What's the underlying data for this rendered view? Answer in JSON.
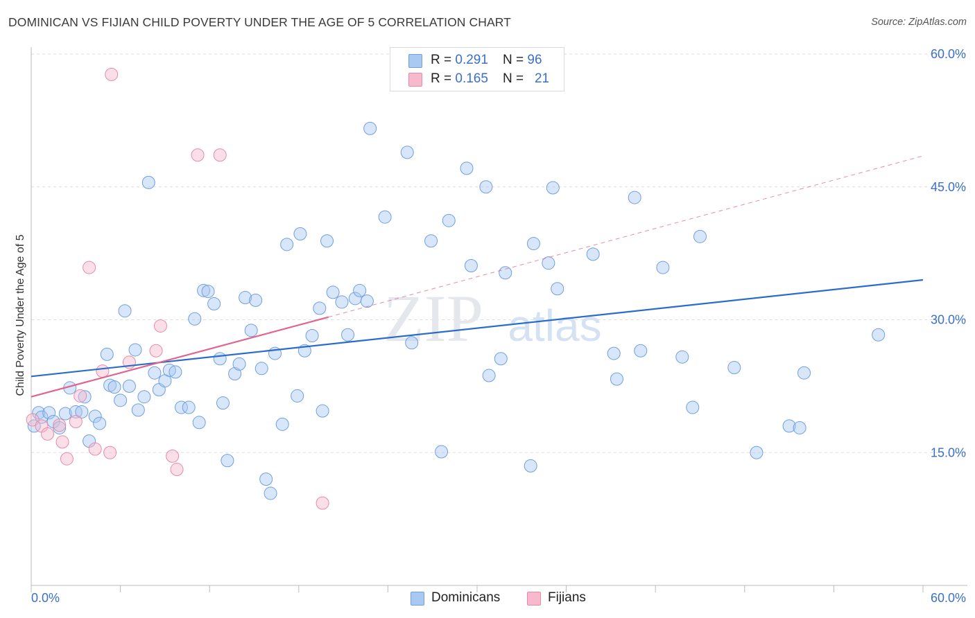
{
  "title": "DOMINICAN VS FIJIAN CHILD POVERTY UNDER THE AGE OF 5 CORRELATION CHART",
  "source": "Source: ZipAtlas.com",
  "watermark": {
    "zip": "ZIP",
    "atlas": "atlas"
  },
  "legend": {
    "rows": [
      {
        "r_label": "R = ",
        "r_value": "0.291",
        "n_label": "N = ",
        "n_value": "96",
        "color": "#a9c8f2"
      },
      {
        "r_label": "R = ",
        "r_value": "0.165",
        "n_label": "N = ",
        "n_value": "21",
        "color": "#f7b9cb"
      }
    ]
  },
  "bottom_legend": [
    "Dominicans",
    "Fijians"
  ],
  "colors": {
    "blue_fill": "#a9c8f2",
    "blue_stroke": "#6f9fdf",
    "blue_line": "#2a6cc9",
    "pink_fill": "#f7b9cb",
    "pink_stroke": "#e88aa7",
    "pink_line": "#e0648f",
    "grid": "#dddddd",
    "axis": "#bbbbbb",
    "tick_text": "#3a6fcc"
  },
  "chart_data": {
    "type": "scatter",
    "title": "DOMINICAN VS FIJIAN CHILD POVERTY UNDER THE AGE OF 5 CORRELATION CHART",
    "xlabel": "",
    "ylabel": "Child Poverty Under the Age of 5",
    "xlim": [
      0,
      60
    ],
    "ylim": [
      0,
      60
    ],
    "x_tick_labels": [
      "0.0%",
      "60.0%"
    ],
    "y_ticks": [
      15,
      30,
      45,
      60
    ],
    "y_tick_labels": [
      "15.0%",
      "30.0%",
      "45.0%",
      "60.0%"
    ],
    "grid": true,
    "legend_position": "top-center",
    "series": [
      {
        "name": "Dominicans",
        "R": 0.291,
        "N": 96,
        "points": [
          [
            0.2,
            18.0
          ],
          [
            0.5,
            19.5
          ],
          [
            0.7,
            19.0
          ],
          [
            1.2,
            19.5
          ],
          [
            1.5,
            18.5
          ],
          [
            1.9,
            17.8
          ],
          [
            2.3,
            19.4
          ],
          [
            2.6,
            22.3
          ],
          [
            3.0,
            19.6
          ],
          [
            3.4,
            19.6
          ],
          [
            3.6,
            21.3
          ],
          [
            3.9,
            16.3
          ],
          [
            4.3,
            19.1
          ],
          [
            4.6,
            18.3
          ],
          [
            5.1,
            26.1
          ],
          [
            5.3,
            22.6
          ],
          [
            5.6,
            22.4
          ],
          [
            6.0,
            20.9
          ],
          [
            6.3,
            31.0
          ],
          [
            6.6,
            22.5
          ],
          [
            7.0,
            26.6
          ],
          [
            7.2,
            19.8
          ],
          [
            7.6,
            21.3
          ],
          [
            7.9,
            45.5
          ],
          [
            8.3,
            24.0
          ],
          [
            8.6,
            22.1
          ],
          [
            9.0,
            23.1
          ],
          [
            9.3,
            24.3
          ],
          [
            9.7,
            24.1
          ],
          [
            10.1,
            20.1
          ],
          [
            10.6,
            20.1
          ],
          [
            11.0,
            30.1
          ],
          [
            11.3,
            18.4
          ],
          [
            11.6,
            33.3
          ],
          [
            11.9,
            33.2
          ],
          [
            12.3,
            31.8
          ],
          [
            12.7,
            25.6
          ],
          [
            12.9,
            20.6
          ],
          [
            13.2,
            14.1
          ],
          [
            13.7,
            23.9
          ],
          [
            14.0,
            25.0
          ],
          [
            14.4,
            32.5
          ],
          [
            14.8,
            28.8
          ],
          [
            15.1,
            32.2
          ],
          [
            15.5,
            24.5
          ],
          [
            15.8,
            12.0
          ],
          [
            16.1,
            10.4
          ],
          [
            16.4,
            26.2
          ],
          [
            16.9,
            18.2
          ],
          [
            17.2,
            38.5
          ],
          [
            17.9,
            21.4
          ],
          [
            18.1,
            39.7
          ],
          [
            18.4,
            26.5
          ],
          [
            18.9,
            28.2
          ],
          [
            19.4,
            31.3
          ],
          [
            19.6,
            19.7
          ],
          [
            19.9,
            38.9
          ],
          [
            20.3,
            33.1
          ],
          [
            20.9,
            32.0
          ],
          [
            21.3,
            28.3
          ],
          [
            21.8,
            32.4
          ],
          [
            22.1,
            33.3
          ],
          [
            22.6,
            32.1
          ],
          [
            22.8,
            51.6
          ],
          [
            23.8,
            41.6
          ],
          [
            25.3,
            48.9
          ],
          [
            25.6,
            27.4
          ],
          [
            26.9,
            38.9
          ],
          [
            27.6,
            15.1
          ],
          [
            28.1,
            41.2
          ],
          [
            29.3,
            47.1
          ],
          [
            29.6,
            36.1
          ],
          [
            30.6,
            45.0
          ],
          [
            30.8,
            23.7
          ],
          [
            31.6,
            25.6
          ],
          [
            31.9,
            35.3
          ],
          [
            33.6,
            13.5
          ],
          [
            33.8,
            38.6
          ],
          [
            34.8,
            36.4
          ],
          [
            35.1,
            44.9
          ],
          [
            35.4,
            33.5
          ],
          [
            37.8,
            37.4
          ],
          [
            39.2,
            26.2
          ],
          [
            39.4,
            23.3
          ],
          [
            40.6,
            43.8
          ],
          [
            41.0,
            26.5
          ],
          [
            42.5,
            35.9
          ],
          [
            43.8,
            25.8
          ],
          [
            44.5,
            20.1
          ],
          [
            45.0,
            39.4
          ],
          [
            47.3,
            24.6
          ],
          [
            48.8,
            15.0
          ],
          [
            51.0,
            18.0
          ],
          [
            51.7,
            17.8
          ],
          [
            52.0,
            24.0
          ],
          [
            57.0,
            28.3
          ]
        ],
        "trend": {
          "x": [
            0,
            60
          ],
          "y": [
            23.6,
            34.5
          ]
        }
      },
      {
        "name": "Fijians",
        "R": 0.165,
        "N": 21,
        "points": [
          [
            0.1,
            18.7
          ],
          [
            0.7,
            18.0
          ],
          [
            1.1,
            17.1
          ],
          [
            1.9,
            18.1
          ],
          [
            2.1,
            16.2
          ],
          [
            2.4,
            14.3
          ],
          [
            3.0,
            18.5
          ],
          [
            3.3,
            21.4
          ],
          [
            3.9,
            35.9
          ],
          [
            4.3,
            15.4
          ],
          [
            4.8,
            24.2
          ],
          [
            5.3,
            15.0
          ],
          [
            5.4,
            57.7
          ],
          [
            6.6,
            25.2
          ],
          [
            8.4,
            26.5
          ],
          [
            8.7,
            29.3
          ],
          [
            9.5,
            14.6
          ],
          [
            9.8,
            13.1
          ],
          [
            11.2,
            48.6
          ],
          [
            12.7,
            48.6
          ],
          [
            19.6,
            9.3
          ]
        ],
        "trend": {
          "x": [
            0,
            20
          ],
          "y": [
            21.3,
            30.3
          ]
        },
        "trend_dashed_extension": {
          "x": [
            20,
            60
          ],
          "y": [
            30.3,
            48.5
          ]
        }
      }
    ]
  }
}
